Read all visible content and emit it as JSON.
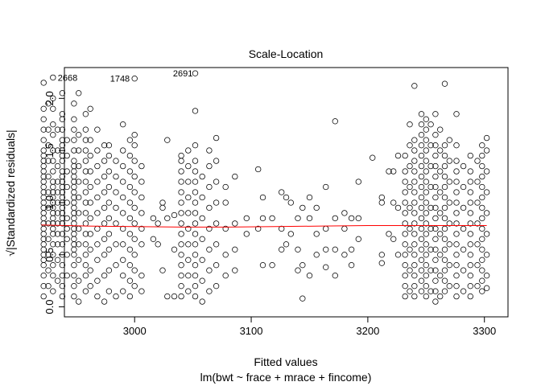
{
  "chart_data": {
    "type": "scatter",
    "title": "Scale-Location",
    "xlabel": "Fitted values",
    "xlabel_sub": "lm(bwt ~ frace + mrace + fincome)",
    "ylabel": "√|Standardized residuals|",
    "xlim": [
      2955,
      3305
    ],
    "ylim": [
      0,
      2.2
    ],
    "x_ticks": [
      3000,
      3100,
      3200,
      3300
    ],
    "y_ticks": [
      0.0,
      0.5,
      1.0,
      1.5,
      2.0
    ],
    "x_tick_labels": [
      "3000",
      "3100",
      "3200",
      "3300"
    ],
    "y_tick_labels": [
      "0.0",
      "0.5",
      "1.0",
      "1.5",
      "2.0"
    ],
    "point_style": "open-circle",
    "smooth_color": "#ff0000",
    "labeled_points": [
      {
        "label": "2668",
        "x": 2930,
        "y": 2.2
      },
      {
        "label": "1748",
        "x": 3000,
        "y": 2.19
      },
      {
        "label": "2691",
        "x": 3054,
        "y": 2.24
      }
    ],
    "smooth_line": {
      "x": [
        2920,
        2960,
        3000,
        3040,
        3080,
        3120,
        3160,
        3200,
        3240,
        3280,
        3302
      ],
      "y": [
        0.785,
        0.775,
        0.77,
        0.765,
        0.765,
        0.77,
        0.775,
        0.78,
        0.78,
        0.78,
        0.78
      ]
    },
    "columns": [
      {
        "x": 2922,
        "y": [
          0.1,
          0.2,
          0.3,
          0.4,
          0.45,
          0.5,
          0.55,
          0.6,
          0.65,
          0.7,
          0.75,
          0.8,
          0.85,
          0.9,
          0.95,
          1.0,
          1.05,
          1.1,
          1.15,
          1.2,
          1.25,
          1.3,
          1.35,
          1.4,
          1.45,
          1.5,
          1.6,
          1.7,
          1.8,
          1.9,
          2.15
        ]
      },
      {
        "x": 2926,
        "y": [
          0.2,
          0.35,
          0.5,
          0.65,
          0.8,
          0.95,
          1.1,
          1.25,
          1.4,
          1.55,
          1.7,
          1.95
        ]
      },
      {
        "x": 2930,
        "y": [
          0.15,
          0.3,
          0.4,
          0.5,
          0.6,
          0.7,
          0.75,
          0.8,
          0.85,
          0.9,
          0.95,
          1.0,
          1.05,
          1.1,
          1.15,
          1.2,
          1.3,
          1.4,
          1.5,
          1.65,
          1.75,
          1.9,
          2.0,
          2.2
        ]
      },
      {
        "x": 2934,
        "y": [
          0.25,
          0.45,
          0.6,
          0.7,
          0.8,
          0.9,
          1.0,
          1.1,
          1.2,
          1.35,
          1.5,
          1.7
        ]
      },
      {
        "x": 2938,
        "y": [
          0.1,
          0.2,
          0.3,
          0.4,
          0.5,
          0.6,
          0.7,
          0.8,
          0.85,
          0.9,
          0.95,
          1.0,
          1.05,
          1.1,
          1.15,
          1.2,
          1.25,
          1.3,
          1.4,
          1.45,
          1.5,
          1.55,
          1.6,
          1.7,
          1.8,
          1.85,
          2.05
        ]
      },
      {
        "x": 2942,
        "y": [
          0.3,
          0.5,
          0.65,
          0.75,
          0.85,
          1.0,
          1.15,
          1.3,
          1.45,
          1.6
        ]
      },
      {
        "x": 2948,
        "y": [
          0.1,
          0.2,
          0.3,
          0.4,
          0.5,
          0.55,
          0.6,
          0.65,
          0.7,
          0.75,
          0.8,
          0.85,
          0.9,
          0.95,
          1.0,
          1.05,
          1.1,
          1.15,
          1.2,
          1.25,
          1.3,
          1.35,
          1.4,
          1.5,
          1.6,
          1.7,
          1.8,
          1.95
        ]
      },
      {
        "x": 2952,
        "y": [
          0.05,
          0.25,
          0.45,
          0.6,
          0.75,
          0.9,
          1.05,
          1.2,
          1.35,
          1.5,
          1.65,
          2.05
        ]
      },
      {
        "x": 2958,
        "y": [
          0.15,
          0.3,
          0.4,
          0.5,
          0.6,
          0.7,
          0.8,
          0.9,
          1.0,
          1.1,
          1.2,
          1.3,
          1.4,
          1.5,
          1.6,
          1.7,
          1.85
        ]
      },
      {
        "x": 2962,
        "y": [
          0.2,
          0.35,
          0.55,
          0.7,
          0.85,
          1.0,
          1.15,
          1.3,
          1.45,
          1.6,
          1.9
        ]
      },
      {
        "x": 2968,
        "y": [
          0.1,
          0.25,
          0.45,
          0.6,
          0.75,
          0.9,
          1.05,
          1.2,
          1.35,
          1.5,
          1.7
        ]
      },
      {
        "x": 2974,
        "y": [
          0.05,
          0.3,
          0.5,
          0.65,
          0.8,
          0.95,
          1.1,
          1.25,
          1.4,
          1.55
        ]
      },
      {
        "x": 2978,
        "y": [
          0.15,
          0.35,
          0.55,
          0.7,
          0.85,
          1.0,
          1.15,
          1.3,
          1.45,
          1.55
        ]
      },
      {
        "x": 2984,
        "y": [
          0.1,
          0.4,
          0.6,
          0.8,
          0.95,
          1.1,
          1.25,
          1.4
        ]
      },
      {
        "x": 2990,
        "y": [
          0.15,
          0.3,
          0.45,
          0.6,
          0.75,
          0.9,
          1.05,
          1.2,
          1.35,
          1.5,
          1.75
        ]
      },
      {
        "x": 2996,
        "y": [
          0.1,
          0.25,
          0.4,
          0.55,
          0.7,
          0.85,
          1.0,
          1.15,
          1.3,
          1.45,
          1.6
        ]
      },
      {
        "x": 3000,
        "y": [
          0.2,
          0.35,
          0.5,
          0.65,
          0.8,
          0.95,
          1.1,
          1.25,
          1.4,
          1.55,
          1.65,
          2.19
        ]
      },
      {
        "x": 3006,
        "y": [
          0.15,
          0.3,
          0.6,
          0.75,
          0.9,
          1.05,
          1.2,
          1.35
        ]
      },
      {
        "x": 3016,
        "y": [
          0.65,
          0.85
        ]
      },
      {
        "x": 3020,
        "y": [
          0.6,
          0.8
        ]
      },
      {
        "x": 3024,
        "y": [
          0.35,
          0.95,
          1.0
        ]
      },
      {
        "x": 3028,
        "y": [
          0.1,
          0.85,
          1.6
        ]
      },
      {
        "x": 3034,
        "y": [
          0.1,
          0.55,
          0.88
        ]
      },
      {
        "x": 3040,
        "y": [
          0.1,
          0.2,
          0.3,
          0.4,
          0.5,
          0.6,
          0.7,
          0.8,
          0.9,
          1.0,
          1.1,
          1.2,
          1.3,
          1.4,
          1.45
        ]
      },
      {
        "x": 3046,
        "y": [
          0.15,
          0.3,
          0.45,
          0.6,
          0.75,
          0.9,
          1.05,
          1.2,
          1.35,
          1.5
        ]
      },
      {
        "x": 3052,
        "y": [
          0.1,
          0.2,
          0.3,
          0.4,
          0.5,
          0.6,
          0.7,
          0.8,
          0.9,
          1.0,
          1.1,
          1.2,
          1.3,
          1.4,
          1.55,
          1.88,
          2.24
        ]
      },
      {
        "x": 3058,
        "y": [
          0.05,
          0.25,
          0.45,
          0.65,
          0.85,
          1.05,
          1.25
        ]
      },
      {
        "x": 3064,
        "y": [
          0.15,
          0.35,
          0.55,
          0.75,
          0.95,
          1.15,
          1.35,
          1.5
        ]
      },
      {
        "x": 3070,
        "y": [
          0.2,
          0.4,
          0.6,
          0.8,
          1.0,
          1.2,
          1.4,
          1.62
        ]
      },
      {
        "x": 3078,
        "y": [
          0.3,
          0.5,
          0.75,
          1.0,
          1.15
        ]
      },
      {
        "x": 3086,
        "y": [
          0.35,
          0.55,
          0.8,
          1.25
        ]
      },
      {
        "x": 3096,
        "y": [
          0.7,
          0.85
        ]
      },
      {
        "x": 3106,
        "y": [
          0.75,
          1.32
        ]
      },
      {
        "x": 3110,
        "y": [
          0.4,
          0.85,
          1.05
        ]
      },
      {
        "x": 3118,
        "y": [
          0.4,
          0.85
        ]
      },
      {
        "x": 3126,
        "y": [
          0.55,
          0.75,
          1.1
        ]
      },
      {
        "x": 3130,
        "y": [
          0.6,
          1.05
        ]
      },
      {
        "x": 3134,
        "y": [
          0.7,
          1.0
        ]
      },
      {
        "x": 3140,
        "y": [
          0.35,
          0.55,
          0.85
        ]
      },
      {
        "x": 3144,
        "y": [
          0.4,
          0.95,
          0.08
        ]
      },
      {
        "x": 3150,
        "y": [
          0.3,
          0.85,
          1.05
        ]
      },
      {
        "x": 3156,
        "y": [
          0.5,
          0.7,
          0.95
        ]
      },
      {
        "x": 3164,
        "y": [
          0.38,
          0.55,
          0.75,
          1.15
        ]
      },
      {
        "x": 3172,
        "y": [
          0.3,
          0.55,
          0.85,
          1.78
        ]
      },
      {
        "x": 3180,
        "y": [
          0.5,
          0.75,
          0.9
        ]
      },
      {
        "x": 3186,
        "y": [
          0.4,
          0.55,
          0.85
        ]
      },
      {
        "x": 3192,
        "y": [
          0.65,
          0.85,
          1.2
        ]
      },
      {
        "x": 3204,
        "y": [
          1.43
        ]
      },
      {
        "x": 3212,
        "y": [
          0.42,
          0.5,
          1.0,
          1.05
        ]
      },
      {
        "x": 3218,
        "y": [
          0.7,
          1.3
        ]
      },
      {
        "x": 3222,
        "y": [
          0.65,
          1.0,
          1.3
        ]
      },
      {
        "x": 3226,
        "y": [
          0.5,
          0.95,
          1.45
        ]
      },
      {
        "x": 3232,
        "y": [
          0.1,
          0.2,
          0.3,
          0.4,
          0.5,
          0.6,
          0.7,
          0.8,
          0.9,
          1.0,
          1.1,
          1.2,
          1.3,
          1.45
        ]
      },
      {
        "x": 3236,
        "y": [
          0.15,
          0.35,
          0.55,
          0.75,
          0.95,
          1.15,
          1.35,
          1.55,
          1.75
        ]
      },
      {
        "x": 3240,
        "y": [
          0.1,
          0.2,
          0.3,
          0.4,
          0.5,
          0.6,
          0.7,
          0.8,
          0.9,
          1.0,
          1.1,
          1.2,
          1.3,
          1.4,
          1.5,
          1.6,
          2.12
        ]
      },
      {
        "x": 3246,
        "y": [
          0.15,
          0.25,
          0.35,
          0.45,
          0.55,
          0.65,
          0.75,
          0.85,
          0.95,
          1.05,
          1.15,
          1.25,
          1.35,
          1.45,
          1.55,
          1.65,
          1.75,
          1.85
        ]
      },
      {
        "x": 3250,
        "y": [
          0.1,
          0.2,
          0.3,
          0.4,
          0.5,
          0.6,
          0.7,
          0.8,
          0.9,
          1.0,
          1.1,
          1.2,
          1.3,
          1.4,
          1.5,
          1.6,
          1.7,
          1.8
        ]
      },
      {
        "x": 3254,
        "y": [
          0.15,
          0.35,
          0.55,
          0.75,
          0.95,
          1.15,
          1.35,
          1.55,
          1.75
        ]
      },
      {
        "x": 3258,
        "y": [
          0.05,
          0.15,
          0.25,
          0.35,
          0.45,
          0.55,
          0.65,
          0.75,
          0.85,
          0.95,
          1.05,
          1.15,
          1.25,
          1.35,
          1.45,
          1.55,
          1.65,
          1.85
        ]
      },
      {
        "x": 3262,
        "y": [
          0.1,
          0.3,
          0.5,
          0.7,
          0.9,
          1.1,
          1.3,
          1.5,
          1.7
        ]
      },
      {
        "x": 3266,
        "y": [
          0.15,
          0.25,
          0.35,
          0.45,
          0.55,
          0.65,
          0.75,
          0.85,
          0.95,
          1.05,
          1.15,
          1.25,
          1.35,
          1.45,
          1.55,
          2.14
        ]
      },
      {
        "x": 3270,
        "y": [
          0.2,
          0.4,
          0.6,
          0.8,
          1.0,
          1.2,
          1.4,
          1.6
        ]
      },
      {
        "x": 3276,
        "y": [
          0.1,
          0.2,
          0.3,
          0.4,
          0.5,
          0.6,
          0.7,
          0.8,
          0.9,
          1.0,
          1.1,
          1.2,
          1.3,
          1.4,
          1.55,
          1.85
        ]
      },
      {
        "x": 3282,
        "y": [
          0.15,
          0.35,
          0.55,
          0.75,
          0.95,
          1.15,
          1.35
        ]
      },
      {
        "x": 3288,
        "y": [
          0.1,
          0.2,
          0.3,
          0.4,
          0.5,
          0.6,
          0.7,
          0.8,
          0.9,
          1.0,
          1.1,
          1.2,
          1.3,
          1.45
        ]
      },
      {
        "x": 3294,
        "y": [
          0.2,
          0.4,
          0.6,
          0.8,
          1.0,
          1.2,
          1.4
        ]
      },
      {
        "x": 3298,
        "y": [
          0.15,
          0.25,
          0.35,
          0.45,
          0.55,
          0.65,
          0.75,
          0.85,
          0.95,
          1.05,
          1.15,
          1.25,
          1.35,
          1.45,
          1.55
        ]
      },
      {
        "x": 3302,
        "y": [
          0.18,
          0.3,
          0.5,
          0.7,
          0.9,
          1.1,
          1.3,
          1.5,
          1.62
        ]
      }
    ]
  }
}
